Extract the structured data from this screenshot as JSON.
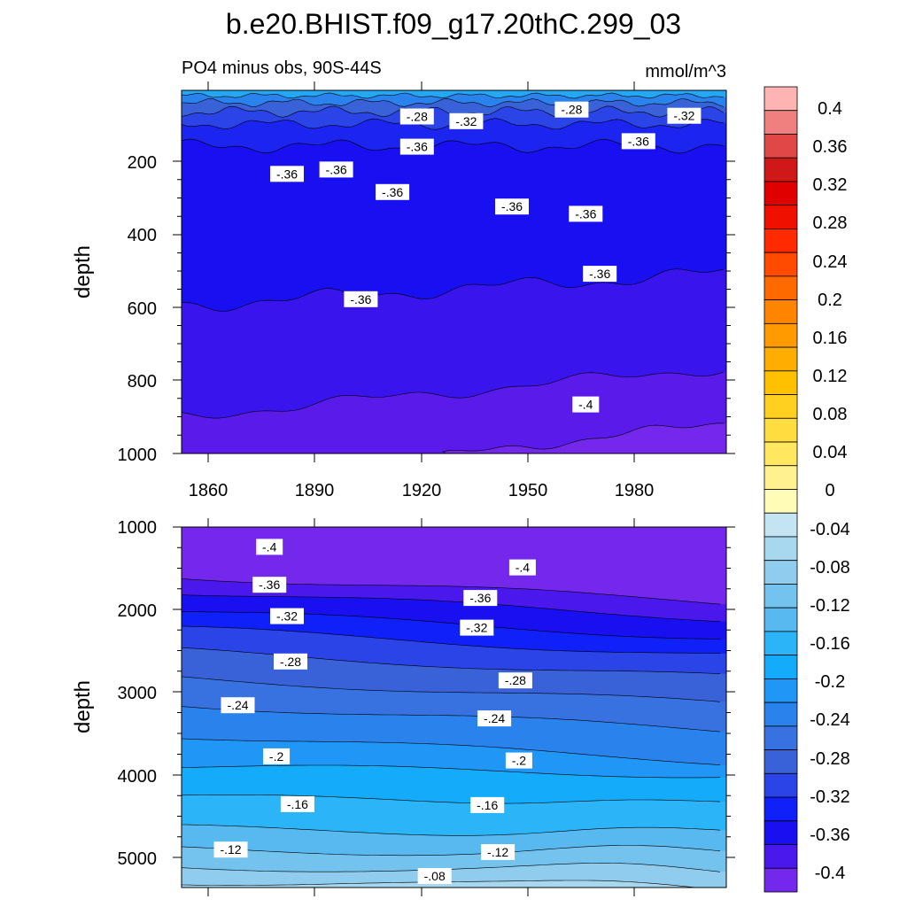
{
  "title": "b.e20.BHIST.f09_g17.20thC.299_03",
  "chart_data": [
    {
      "type": "contour",
      "panel": "upper",
      "subtitle_left": "PO4 minus obs, 90S-44S",
      "subtitle_right": "mmol/m^3",
      "ylabel": "depth",
      "xlim": [
        1850,
        2005
      ],
      "ylim": [
        1000,
        0
      ],
      "y_ticks": [
        "200",
        "400",
        "600",
        "800",
        "1000"
      ],
      "x_ticks": [
        "1860",
        "1890",
        "1920",
        "1950",
        "1980"
      ],
      "contour_labels": [
        {
          "text": "-.28",
          "x": 1917,
          "y": 72
        },
        {
          "text": "-.32",
          "x": 1931,
          "y": 85
        },
        {
          "text": "-.28",
          "x": 1961,
          "y": 53
        },
        {
          "text": "-.32",
          "x": 1993,
          "y": 70
        },
        {
          "text": "-.36",
          "x": 1980,
          "y": 140
        },
        {
          "text": "-.36",
          "x": 1917,
          "y": 155
        },
        {
          "text": "-.36",
          "x": 1880,
          "y": 230
        },
        {
          "text": "-.36",
          "x": 1894,
          "y": 218
        },
        {
          "text": "-.36",
          "x": 1910,
          "y": 280
        },
        {
          "text": "-.36",
          "x": 1944,
          "y": 320
        },
        {
          "text": "-.36",
          "x": 1965,
          "y": 340
        },
        {
          "text": "-.36",
          "x": 1969,
          "y": 505
        },
        {
          "text": "-.36",
          "x": 1901,
          "y": 575
        },
        {
          "text": "-.4",
          "x": 1965,
          "y": 865
        }
      ]
    },
    {
      "type": "contour",
      "panel": "lower",
      "ylabel": "depth",
      "xlim": [
        1850,
        2005
      ],
      "ylim": [
        5370,
        1000
      ],
      "y_ticks": [
        "1000",
        "2000",
        "3000",
        "4000",
        "5000"
      ],
      "contour_labels": [
        {
          "text": "-.4",
          "x": 1875,
          "y": 1240
        },
        {
          "text": "-.4",
          "x": 1947,
          "y": 1490
        },
        {
          "text": "-.36",
          "x": 1875,
          "y": 1700
        },
        {
          "text": "-.36",
          "x": 1935,
          "y": 1860
        },
        {
          "text": "-.32",
          "x": 1880,
          "y": 2080
        },
        {
          "text": "-.32",
          "x": 1934,
          "y": 2220
        },
        {
          "text": "-.28",
          "x": 1881,
          "y": 2630
        },
        {
          "text": "-.28",
          "x": 1945,
          "y": 2860
        },
        {
          "text": "-.24",
          "x": 1866,
          "y": 3160
        },
        {
          "text": "-.24",
          "x": 1939,
          "y": 3320
        },
        {
          "text": "-.2",
          "x": 1877,
          "y": 3780
        },
        {
          "text": "-.2",
          "x": 1946,
          "y": 3830
        },
        {
          "text": "-.16",
          "x": 1883,
          "y": 4360
        },
        {
          "text": "-.16",
          "x": 1937,
          "y": 4370
        },
        {
          "text": "-.12",
          "x": 1864,
          "y": 4910
        },
        {
          "text": "-.12",
          "x": 1940,
          "y": 4940
        },
        {
          "text": "-.08",
          "x": 1922,
          "y": 5230
        }
      ]
    }
  ],
  "colorbar": {
    "labels": [
      "0.4",
      "0.36",
      "0.32",
      "0.28",
      "0.24",
      "0.2",
      "0.16",
      "0.12",
      "0.08",
      "0.04",
      "0",
      "-0.04",
      "-0.08",
      "-0.12",
      "-0.16",
      "-0.2",
      "-0.24",
      "-0.28",
      "-0.32",
      "-0.36",
      "-0.4"
    ],
    "colors": [
      "#FFB4B4",
      "#F08080",
      "#E04848",
      "#D01818",
      "#E00000",
      "#F01000",
      "#FF2A00",
      "#FF4A00",
      "#FF6A00",
      "#FF8400",
      "#FF9A00",
      "#FFAE00",
      "#FFC000",
      "#FFD020",
      "#FFDC40",
      "#FFE860",
      "#FFF090",
      "#FFFCB8",
      "#C4E4F4",
      "#A8D8F0",
      "#90CCEE",
      "#74C2EE",
      "#58B8F0",
      "#2CB4F8",
      "#14ACFA",
      "#2096F6",
      "#2A82EC",
      "#3872E0",
      "#3A62D8",
      "#2A44E8",
      "#1020F8",
      "#1810F0",
      "#4A18EC",
      "#7428EC"
    ]
  }
}
